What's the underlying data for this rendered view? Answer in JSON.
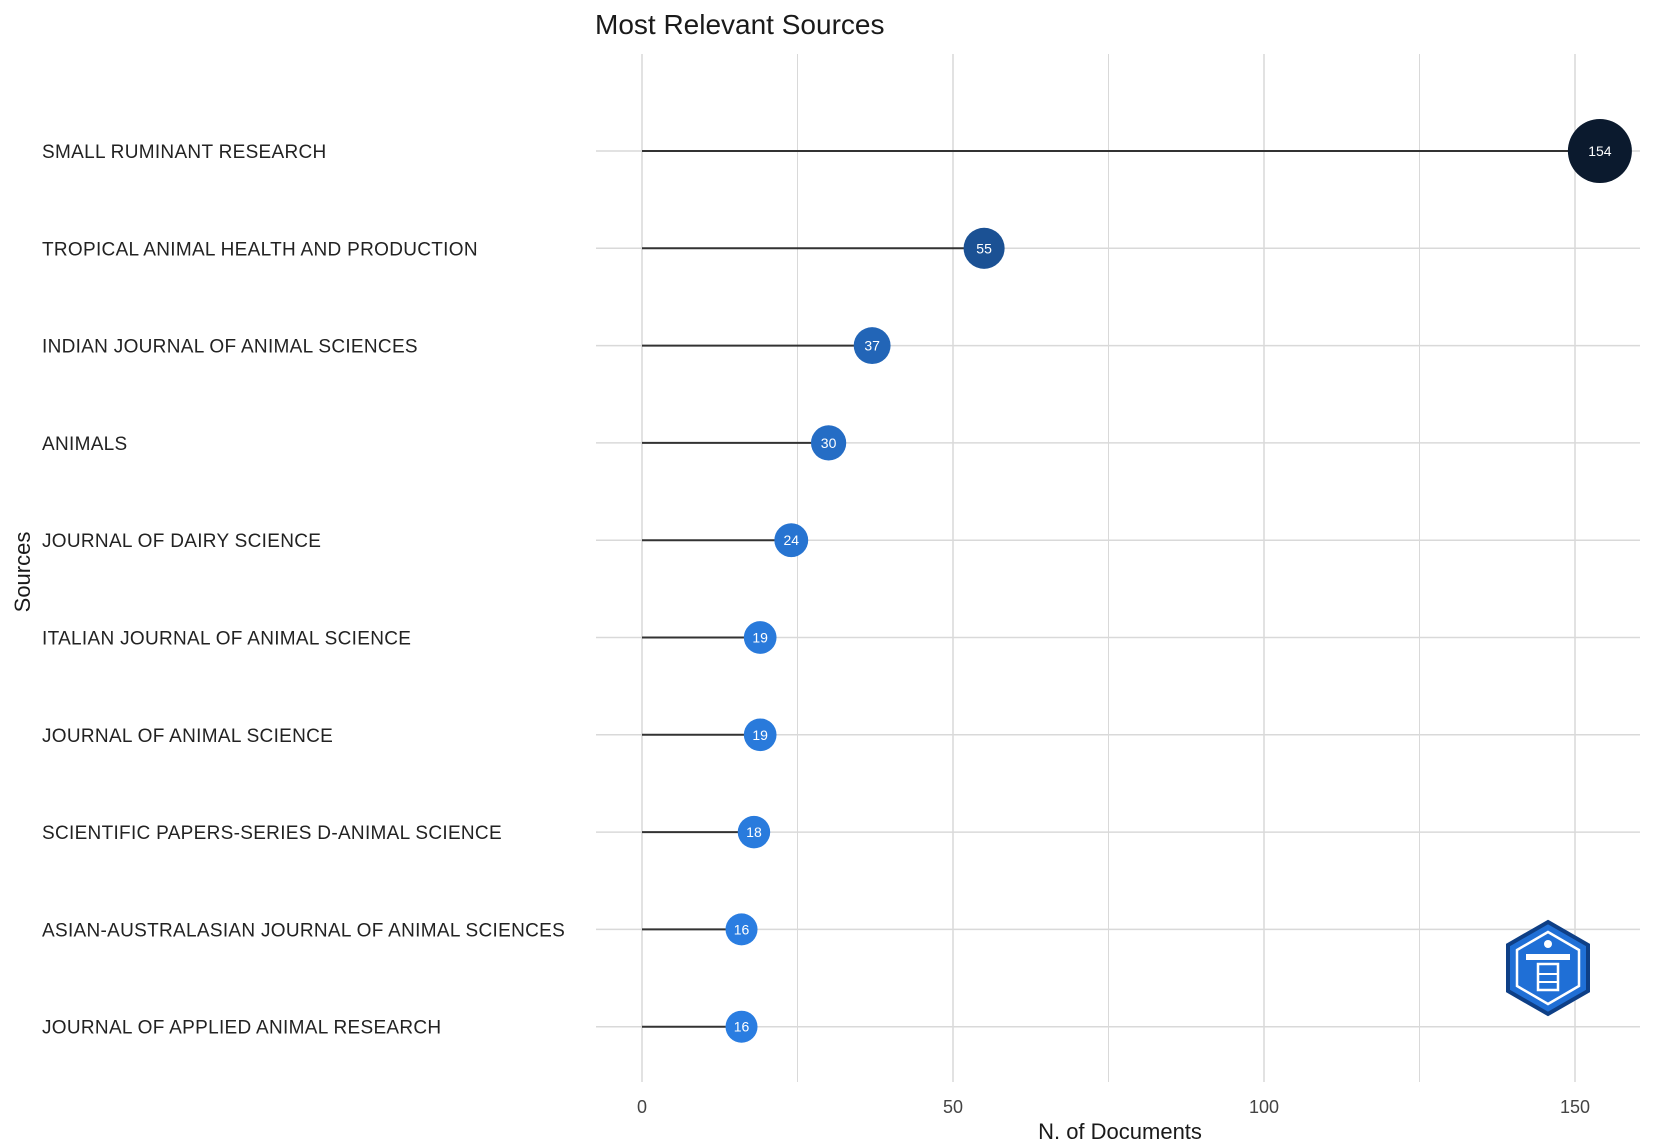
{
  "chart_data": {
    "type": "lollipop",
    "title": "Most Relevant Sources",
    "xlabel": "N. of Documents",
    "ylabel": "Sources",
    "xlim": [
      0,
      160
    ],
    "xticks": [
      0,
      50,
      100,
      150
    ],
    "grid": true,
    "categories": [
      "SMALL RUMINANT RESEARCH",
      "TROPICAL ANIMAL HEALTH AND PRODUCTION",
      "INDIAN JOURNAL OF ANIMAL SCIENCES",
      "ANIMALS",
      "JOURNAL OF DAIRY SCIENCE",
      "ITALIAN JOURNAL OF ANIMAL SCIENCE",
      "JOURNAL OF ANIMAL SCIENCE",
      "SCIENTIFIC PAPERS-SERIES D-ANIMAL SCIENCE",
      "ASIAN-AUSTRALASIAN JOURNAL OF ANIMAL SCIENCES",
      "JOURNAL OF APPLIED ANIMAL RESEARCH"
    ],
    "values": [
      154,
      55,
      37,
      30,
      24,
      19,
      19,
      18,
      16,
      16
    ],
    "colors": {
      "high": "#0b1a2e",
      "mid": "#1a4e8f",
      "low": "#2a7de1",
      "stem": "#333333",
      "grid": "#d9d9d9"
    }
  },
  "logo": {
    "name": "watermark-logo-icon"
  }
}
